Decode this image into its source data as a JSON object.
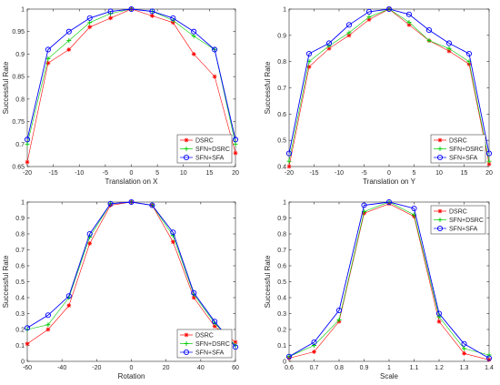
{
  "chart_data": [
    {
      "type": "line",
      "xlabel": "Translation on X",
      "ylabel": "Successful Rate",
      "xlim": [
        -20,
        20
      ],
      "ylim": [
        0.65,
        1
      ],
      "xticks": [
        -20,
        -15,
        -10,
        -5,
        0,
        5,
        10,
        15,
        20
      ],
      "yticks": [
        0.65,
        0.7,
        0.75,
        0.8,
        0.85,
        0.9,
        0.95,
        1
      ],
      "ytick_labels": [
        "0.65",
        "0.7",
        "0.75",
        "0.8",
        "0.85",
        "0.9",
        "0.95",
        "1"
      ],
      "grid": false,
      "legend_position": "bottom-right",
      "x": [
        -20,
        -16,
        -12,
        -8,
        -4,
        0,
        4,
        8,
        12,
        16,
        20
      ],
      "series": [
        {
          "name": "DSRC",
          "values": [
            0.66,
            0.88,
            0.91,
            0.96,
            0.98,
            1.0,
            0.985,
            0.97,
            0.9,
            0.85,
            0.68
          ]
        },
        {
          "name": "SFN+DSRC",
          "values": [
            0.7,
            0.89,
            0.93,
            0.97,
            0.99,
            1.0,
            0.995,
            0.975,
            0.94,
            0.91,
            0.7
          ]
        },
        {
          "name": "SFN+SFA",
          "values": [
            0.71,
            0.91,
            0.95,
            0.98,
            0.995,
            1.0,
            0.995,
            0.98,
            0.95,
            0.91,
            0.71
          ]
        }
      ]
    },
    {
      "type": "line",
      "xlabel": "Translation on Y",
      "ylabel": "Successful Rate",
      "xlim": [
        -20,
        20
      ],
      "ylim": [
        0.4,
        1
      ],
      "xticks": [
        -20,
        -15,
        -10,
        -5,
        0,
        5,
        10,
        15,
        20
      ],
      "yticks": [
        0.4,
        0.5,
        0.6,
        0.7,
        0.8,
        0.9,
        1
      ],
      "ytick_labels": [
        "0.4",
        "0.5",
        "0.6",
        "0.7",
        "0.8",
        "0.9",
        "1"
      ],
      "grid": false,
      "legend_position": "bottom-right",
      "x": [
        -20,
        -16,
        -12,
        -8,
        -4,
        0,
        4,
        8,
        12,
        16,
        20
      ],
      "series": [
        {
          "name": "DSRC",
          "values": [
            0.4,
            0.78,
            0.85,
            0.9,
            0.96,
            1.0,
            0.94,
            0.88,
            0.84,
            0.79,
            0.41
          ]
        },
        {
          "name": "SFN+DSRC",
          "values": [
            0.42,
            0.8,
            0.86,
            0.91,
            0.97,
            1.0,
            0.95,
            0.88,
            0.85,
            0.8,
            0.42
          ]
        },
        {
          "name": "SFN+SFA",
          "values": [
            0.45,
            0.83,
            0.87,
            0.94,
            0.99,
            1.0,
            0.98,
            0.92,
            0.87,
            0.83,
            0.45
          ]
        }
      ]
    },
    {
      "type": "line",
      "xlabel": "Rotation",
      "ylabel": "Successful Rate",
      "xlim": [
        -60,
        60
      ],
      "ylim": [
        0,
        1
      ],
      "xticks": [
        -60,
        -40,
        -20,
        0,
        20,
        40,
        60
      ],
      "yticks": [
        0,
        0.1,
        0.2,
        0.3,
        0.4,
        0.5,
        0.6,
        0.7,
        0.8,
        0.9,
        1
      ],
      "ytick_labels": [
        "0",
        "0.1",
        "0.2",
        "0.3",
        "0.4",
        "0.5",
        "0.6",
        "0.7",
        "0.8",
        "0.9",
        "1"
      ],
      "grid": false,
      "legend_position": "bottom-right",
      "x": [
        -60,
        -48,
        -36,
        -24,
        -12,
        0,
        12,
        24,
        36,
        48,
        60
      ],
      "series": [
        {
          "name": "DSRC",
          "values": [
            0.11,
            0.2,
            0.35,
            0.74,
            0.98,
            1.0,
            0.98,
            0.75,
            0.4,
            0.22,
            0.12
          ]
        },
        {
          "name": "SFN+DSRC",
          "values": [
            0.2,
            0.23,
            0.4,
            0.78,
            0.99,
            1.0,
            0.98,
            0.79,
            0.42,
            0.24,
            0.1
          ]
        },
        {
          "name": "SFN+SFA",
          "values": [
            0.21,
            0.29,
            0.41,
            0.8,
            0.99,
            1.0,
            0.98,
            0.81,
            0.43,
            0.25,
            0.09
          ]
        }
      ]
    },
    {
      "type": "line",
      "xlabel": "Scale",
      "ylabel": "Successful Rate",
      "xlim": [
        0.6,
        1.4
      ],
      "ylim": [
        0,
        1
      ],
      "xticks": [
        0.6,
        0.7,
        0.8,
        0.9,
        1,
        1.1,
        1.2,
        1.3,
        1.4
      ],
      "xtick_labels": [
        "0.6",
        "0.7",
        "0.8",
        "0.9",
        "1",
        "1.1",
        "1.2",
        "1.3",
        "1.4"
      ],
      "yticks": [
        0,
        0.1,
        0.2,
        0.3,
        0.4,
        0.5,
        0.6,
        0.7,
        0.8,
        0.9,
        1
      ],
      "ytick_labels": [
        "0",
        "0.1",
        "0.2",
        "0.3",
        "0.4",
        "0.5",
        "0.6",
        "0.7",
        "0.8",
        "0.9",
        "1"
      ],
      "grid": false,
      "legend_position": "top-right",
      "x": [
        0.6,
        0.7,
        0.8,
        0.9,
        1.0,
        1.1,
        1.2,
        1.3,
        1.4
      ],
      "series": [
        {
          "name": "DSRC",
          "values": [
            0.02,
            0.06,
            0.25,
            0.93,
            0.99,
            0.91,
            0.25,
            0.05,
            0.01
          ]
        },
        {
          "name": "SFN+DSRC",
          "values": [
            0.03,
            0.1,
            0.26,
            0.94,
            1.0,
            0.92,
            0.28,
            0.08,
            0.04
          ]
        },
        {
          "name": "SFN+SFA",
          "values": [
            0.03,
            0.12,
            0.32,
            0.98,
            1.0,
            0.96,
            0.3,
            0.11,
            0.02
          ]
        }
      ]
    }
  ],
  "series_colors": {
    "DSRC": "#ff0000",
    "SFN+DSRC": "#00cc00",
    "SFN+SFA": "#0000ff"
  },
  "series_markers": {
    "DSRC": "star",
    "SFN+DSRC": "plus",
    "SFN+SFA": "circle"
  }
}
